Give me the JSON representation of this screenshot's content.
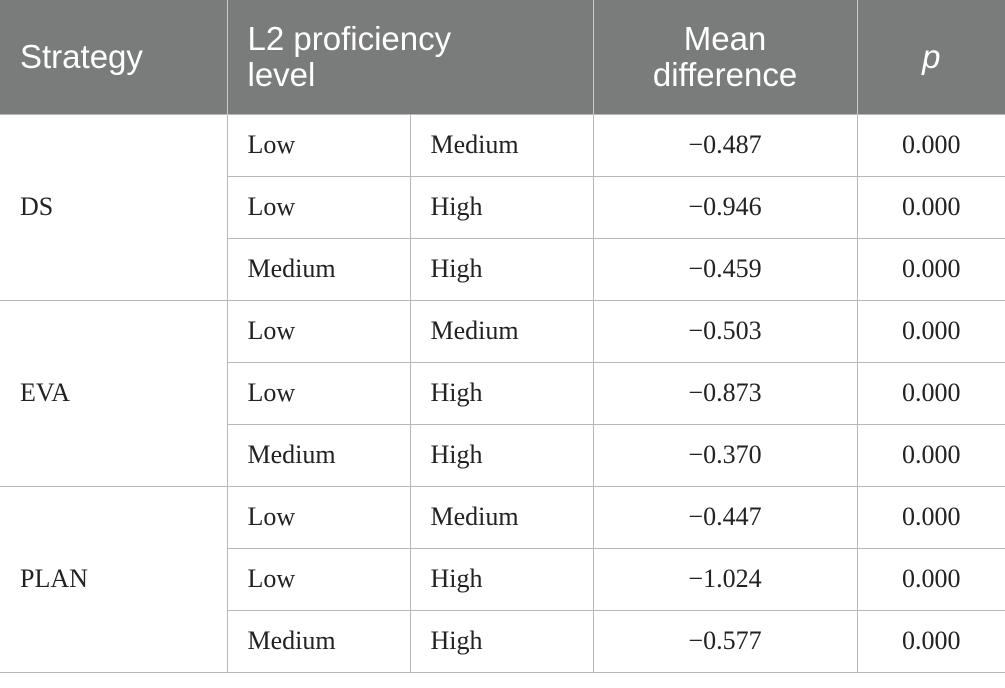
{
  "header": {
    "strategy": "Strategy",
    "proficiency_line1": "L2 proficiency",
    "proficiency_line2": "level",
    "mean_line1": "Mean",
    "mean_line2": "difference",
    "p": "p"
  },
  "groups": [
    {
      "strategy": "DS",
      "rows": [
        {
          "level_a": "Low",
          "level_b": "Medium",
          "mean_diff": "−0.487",
          "p": "0.000"
        },
        {
          "level_a": "Low",
          "level_b": "High",
          "mean_diff": "−0.946",
          "p": "0.000"
        },
        {
          "level_a": "Medium",
          "level_b": "High",
          "mean_diff": "−0.459",
          "p": "0.000"
        }
      ]
    },
    {
      "strategy": "EVA",
      "rows": [
        {
          "level_a": "Low",
          "level_b": "Medium",
          "mean_diff": "−0.503",
          "p": "0.000"
        },
        {
          "level_a": "Low",
          "level_b": "High",
          "mean_diff": "−0.873",
          "p": "0.000"
        },
        {
          "level_a": "Medium",
          "level_b": "High",
          "mean_diff": "−0.370",
          "p": "0.000"
        }
      ]
    },
    {
      "strategy": "PLAN",
      "rows": [
        {
          "level_a": "Low",
          "level_b": "Medium",
          "mean_diff": "−0.447",
          "p": "0.000"
        },
        {
          "level_a": "Low",
          "level_b": "High",
          "mean_diff": "−1.024",
          "p": "0.000"
        },
        {
          "level_a": "Medium",
          "level_b": "High",
          "mean_diff": "−0.577",
          "p": "0.000"
        }
      ]
    }
  ]
}
